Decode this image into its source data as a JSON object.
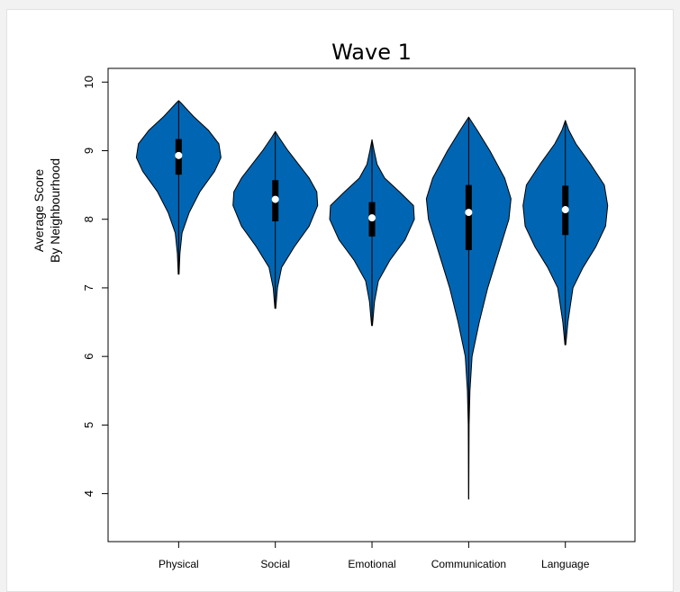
{
  "chart_data": {
    "type": "violin",
    "title": "Wave 1",
    "ylabel_line1": "Average Score",
    "ylabel_line2": "By Neighbourhood",
    "xlabel": "",
    "ylim": [
      3.3,
      10.2
    ],
    "yticks": [
      "4",
      "5",
      "6",
      "7",
      "8",
      "9",
      "10"
    ],
    "grid": false,
    "fill_color": "#0066b3",
    "categories": [
      "Physical",
      "Social",
      "Emotional",
      "Communication",
      "Language"
    ],
    "series": [
      {
        "category": "Physical",
        "min": 7.2,
        "q1": 8.65,
        "median": 8.93,
        "q3": 9.17,
        "max": 9.73,
        "density": [
          [
            7.2,
            0.01
          ],
          [
            7.5,
            0.03
          ],
          [
            7.8,
            0.08
          ],
          [
            8.1,
            0.25
          ],
          [
            8.4,
            0.5
          ],
          [
            8.7,
            0.85
          ],
          [
            8.9,
            1.0
          ],
          [
            9.1,
            0.95
          ],
          [
            9.3,
            0.7
          ],
          [
            9.5,
            0.35
          ],
          [
            9.7,
            0.05
          ],
          [
            9.73,
            0.0
          ]
        ]
      },
      {
        "category": "Social",
        "min": 6.7,
        "q1": 7.97,
        "median": 8.29,
        "q3": 8.57,
        "max": 9.28,
        "density": [
          [
            6.7,
            0.01
          ],
          [
            7.0,
            0.05
          ],
          [
            7.3,
            0.15
          ],
          [
            7.6,
            0.45
          ],
          [
            7.9,
            0.8
          ],
          [
            8.2,
            1.0
          ],
          [
            8.4,
            0.98
          ],
          [
            8.6,
            0.8
          ],
          [
            8.8,
            0.55
          ],
          [
            9.0,
            0.3
          ],
          [
            9.2,
            0.08
          ],
          [
            9.28,
            0.0
          ]
        ]
      },
      {
        "category": "Emotional",
        "min": 6.45,
        "q1": 7.75,
        "median": 8.02,
        "q3": 8.25,
        "max": 9.16,
        "density": [
          [
            6.45,
            0.01
          ],
          [
            6.8,
            0.06
          ],
          [
            7.1,
            0.15
          ],
          [
            7.4,
            0.42
          ],
          [
            7.7,
            0.78
          ],
          [
            8.0,
            1.0
          ],
          [
            8.2,
            0.98
          ],
          [
            8.4,
            0.65
          ],
          [
            8.6,
            0.3
          ],
          [
            8.8,
            0.12
          ],
          [
            9.0,
            0.05
          ],
          [
            9.16,
            0.0
          ]
        ]
      },
      {
        "category": "Communication",
        "min": 3.92,
        "q1": 7.55,
        "median": 8.1,
        "q3": 8.5,
        "max": 9.49,
        "density": [
          [
            3.92,
            0.002
          ],
          [
            5.0,
            0.01
          ],
          [
            5.5,
            0.03
          ],
          [
            6.0,
            0.08
          ],
          [
            6.5,
            0.25
          ],
          [
            7.0,
            0.45
          ],
          [
            7.5,
            0.7
          ],
          [
            8.0,
            0.95
          ],
          [
            8.3,
            1.0
          ],
          [
            8.6,
            0.85
          ],
          [
            9.0,
            0.5
          ],
          [
            9.3,
            0.2
          ],
          [
            9.49,
            0.0
          ]
        ]
      },
      {
        "category": "Language",
        "min": 6.17,
        "q1": 7.77,
        "median": 8.14,
        "q3": 8.49,
        "max": 9.44,
        "density": [
          [
            6.17,
            0.01
          ],
          [
            6.5,
            0.06
          ],
          [
            7.0,
            0.18
          ],
          [
            7.3,
            0.42
          ],
          [
            7.6,
            0.72
          ],
          [
            7.9,
            0.95
          ],
          [
            8.2,
            1.0
          ],
          [
            8.5,
            0.92
          ],
          [
            8.8,
            0.6
          ],
          [
            9.1,
            0.25
          ],
          [
            9.3,
            0.08
          ],
          [
            9.44,
            0.0
          ]
        ]
      }
    ]
  }
}
